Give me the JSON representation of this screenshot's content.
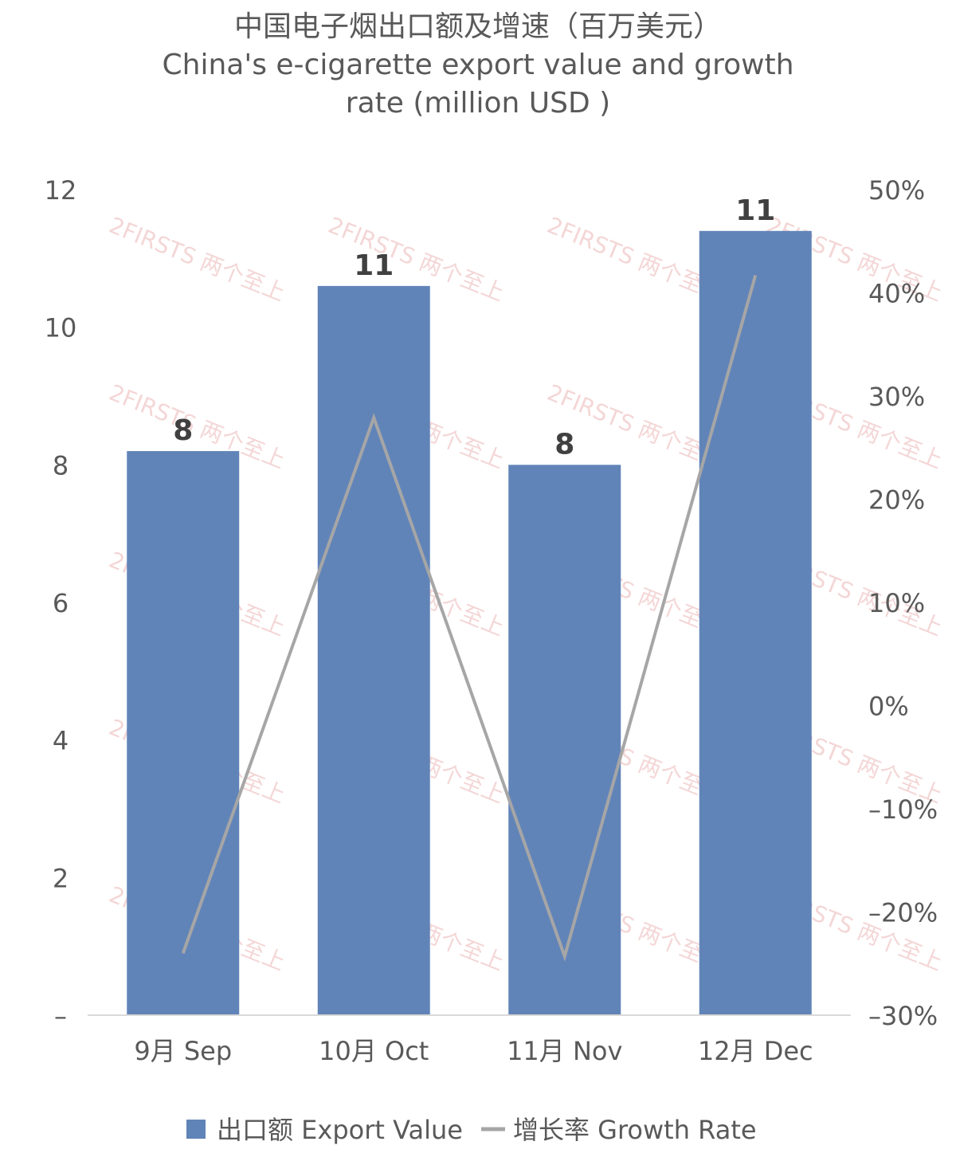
{
  "title_lines": [
    "中国电子烟出口额及增速（百万美元）",
    "China's e-cigarette export value and growth",
    "rate (million USD )"
  ],
  "watermark": "2FIRSTS 两个至上",
  "colors": {
    "bar": "#6184b8",
    "line": "#a6a6a6",
    "text": "#595959",
    "axis": "#d9d9d9",
    "watermark": "#e7a4a4"
  },
  "chart_data": {
    "type": "bar",
    "categories": [
      "9月 Sep",
      "10月 Oct",
      "11月 Nov",
      "12月 Dec"
    ],
    "series": [
      {
        "name": "出口额 Export Value",
        "type": "bar",
        "axis": "left",
        "values": [
          8.2,
          10.6,
          8.0,
          11.4
        ],
        "data_labels": [
          "8",
          "11",
          "8",
          "11"
        ]
      },
      {
        "name": "增长率 Growth Rate",
        "type": "line",
        "axis": "right",
        "values": [
          -24.0,
          27.9,
          -24.3,
          41.7
        ]
      }
    ],
    "y_left": {
      "min": 0,
      "max": 12,
      "ticks": [
        0,
        2,
        4,
        6,
        8,
        10,
        12
      ],
      "tick_labels": [
        "–",
        "2",
        "4",
        "6",
        "8",
        "10",
        "12"
      ]
    },
    "y_right": {
      "min": -30,
      "max": 50,
      "ticks": [
        -30,
        -20,
        -10,
        0,
        10,
        20,
        30,
        40,
        50
      ],
      "tick_labels": [
        "–30%",
        "–20%",
        "–10%",
        "0%",
        "10%",
        "20%",
        "30%",
        "40%",
        "50%"
      ]
    },
    "legend": "bottom",
    "grid": false
  }
}
